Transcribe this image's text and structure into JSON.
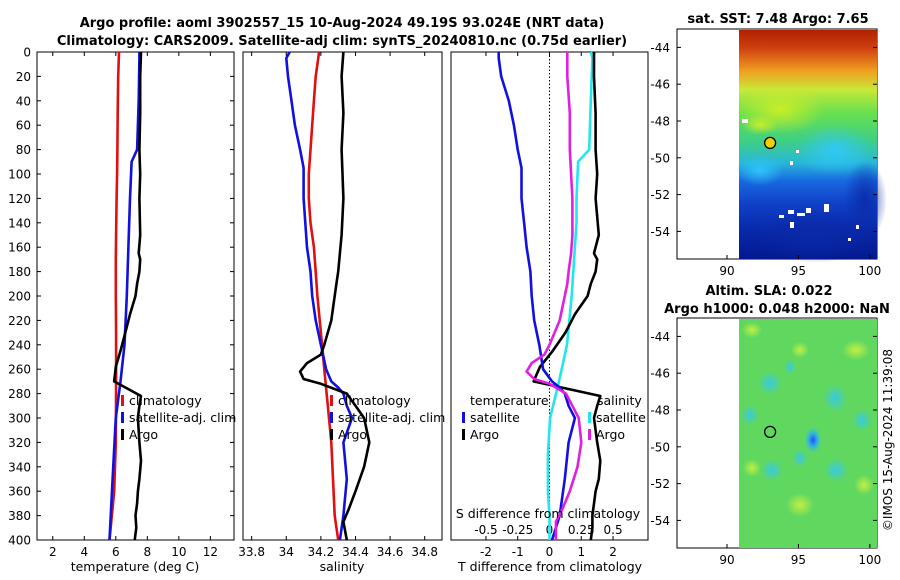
{
  "title": {
    "line1": "Argo profile: aoml 3902557_15 10-Aug-2024 49.19S 93.024E (NRT data)",
    "line2": "Climatology: CARS2009. Satellite-adj clim: synTS_20240810.nc (0.75d earlier)"
  },
  "watermark": "©IMOS 15-Aug-2024 11:39:08",
  "colors": {
    "climatology": "#e01010",
    "satellite": "#1010e0",
    "argo": "#000000",
    "temp_diff": "#22e6ee",
    "sal_diff": "#e020e0",
    "marker": "#f2d000"
  },
  "chart_data": [
    {
      "id": "temperature",
      "type": "line",
      "xlabel": "temperature (deg C)",
      "ylabel": "",
      "xlim": [
        1,
        13.5
      ],
      "ylim": [
        400,
        0
      ],
      "xticks": [
        "2",
        "4",
        "6",
        "8",
        "10",
        "12"
      ],
      "yticks": [
        "0",
        "20",
        "40",
        "60",
        "80",
        "100",
        "120",
        "140",
        "160",
        "180",
        "200",
        "220",
        "240",
        "260",
        "280",
        "300",
        "320",
        "340",
        "360",
        "380",
        "400"
      ],
      "legend": [
        "climatology",
        "satellite-adj. clim",
        "Argo"
      ],
      "series": [
        {
          "name": "climatology",
          "x": [
            6.2,
            6.15,
            6.12,
            6.1,
            6.08,
            6.05,
            6.02,
            6.0,
            6.0,
            6.02,
            6.02,
            6.01,
            6.0,
            5.9,
            5.6
          ],
          "y": [
            0,
            20,
            50,
            80,
            100,
            120,
            150,
            170,
            200,
            230,
            260,
            290,
            320,
            360,
            400
          ]
        },
        {
          "name": "satellite-adj. clim",
          "x": [
            7.5,
            7.5,
            7.45,
            7.35,
            7.0,
            6.9,
            6.85,
            6.8,
            6.75,
            6.7,
            6.55,
            6.3,
            6.0,
            5.8,
            5.6
          ],
          "y": [
            0,
            5,
            40,
            80,
            90,
            120,
            140,
            160,
            180,
            200,
            240,
            270,
            300,
            350,
            400
          ]
        },
        {
          "name": "Argo",
          "x": [
            7.6,
            7.55,
            7.55,
            7.5,
            7.55,
            7.5,
            7.55,
            7.45,
            7.55,
            7.5,
            7.35,
            7.25,
            6.9,
            6.6,
            6.3,
            6.0,
            5.9,
            7.6,
            7.5,
            7.4,
            7.5,
            7.6,
            7.5,
            7.4,
            7.35,
            7.25,
            7.3,
            7.2
          ],
          "y": [
            0,
            20,
            50,
            80,
            100,
            120,
            150,
            165,
            170,
            180,
            190,
            200,
            215,
            230,
            245,
            258,
            270,
            282,
            290,
            300,
            320,
            335,
            350,
            360,
            370,
            380,
            390,
            400
          ]
        }
      ]
    },
    {
      "id": "salinity",
      "type": "line",
      "xlabel": "salinity",
      "ylabel": "",
      "xlim": [
        33.75,
        34.9
      ],
      "ylim": [
        400,
        0
      ],
      "xticks": [
        "33.8",
        "34",
        "34.2",
        "34.4",
        "34.6",
        "34.8"
      ],
      "legend": [
        "climatology",
        "satellite-adj. clim",
        "Argo"
      ],
      "series": [
        {
          "name": "climatology",
          "x": [
            34.19,
            34.18,
            34.17,
            34.16,
            34.15,
            34.14,
            34.13,
            34.13,
            34.14,
            34.16,
            34.17,
            34.18,
            34.2,
            34.22,
            34.24,
            34.26,
            34.27,
            34.28,
            34.3
          ],
          "y": [
            0,
            10,
            20,
            40,
            60,
            80,
            100,
            120,
            140,
            160,
            180,
            200,
            230,
            260,
            290,
            320,
            350,
            380,
            400
          ]
        },
        {
          "name": "satellite-adj. clim",
          "x": [
            34.02,
            34.0,
            34.01,
            34.03,
            34.05,
            34.08,
            34.1,
            34.1,
            34.11,
            34.12,
            34.14,
            34.15,
            34.17,
            34.2,
            34.23,
            34.26,
            34.3,
            34.33,
            34.35,
            34.38,
            34.33,
            34.35,
            34.33,
            34.31
          ],
          "y": [
            0,
            5,
            20,
            40,
            60,
            80,
            95,
            120,
            140,
            160,
            180,
            200,
            220,
            240,
            260,
            270,
            275,
            280,
            290,
            300,
            320,
            350,
            380,
            400
          ]
        },
        {
          "name": "Argo",
          "x": [
            34.33,
            34.32,
            34.33,
            34.32,
            34.33,
            34.32,
            34.31,
            34.3,
            34.29,
            34.28,
            34.27,
            34.26,
            34.24,
            34.22,
            34.2,
            34.12,
            34.08,
            34.1,
            34.2,
            34.35,
            34.4,
            34.45,
            34.48,
            34.45,
            34.4,
            34.36,
            34.33,
            34.35
          ],
          "y": [
            0,
            20,
            50,
            80,
            120,
            150,
            165,
            180,
            190,
            200,
            210,
            220,
            230,
            240,
            248,
            255,
            262,
            268,
            272,
            280,
            290,
            300,
            320,
            340,
            360,
            375,
            385,
            400
          ]
        }
      ]
    },
    {
      "id": "differences",
      "type": "line",
      "xlabel": "T difference from climatology",
      "xlabel_top": "S difference from climatology",
      "xlim": [
        -3.1,
        3.1
      ],
      "ylim": [
        400,
        0
      ],
      "xticks": [
        "-2",
        "-1",
        "0",
        "1",
        "2"
      ],
      "xticks_top": [
        "-0.5",
        "-0.25",
        "0",
        "0.25",
        "0.5"
      ],
      "legend_left_title": "temperature",
      "legend_left": [
        "satellite",
        "Argo"
      ],
      "legend_right_title": "salinity",
      "legend_right": [
        "satellite",
        "Argo"
      ],
      "series": [
        {
          "name": "temperature satellite",
          "x": [
            1.3,
            1.35,
            1.3,
            1.25,
            0.9,
            0.85,
            0.85,
            0.8,
            0.75,
            0.7,
            0.55,
            0.3,
            0.02,
            -0.05,
            -0.05,
            0,
            0
          ],
          "y": [
            0,
            5,
            40,
            80,
            90,
            120,
            140,
            160,
            180,
            200,
            240,
            270,
            300,
            330,
            360,
            380,
            400
          ]
        },
        {
          "name": "temperature Argo",
          "x": [
            1.4,
            1.4,
            1.45,
            1.45,
            1.5,
            1.45,
            1.55,
            1.4,
            1.5,
            1.45,
            1.3,
            1.2,
            0.8,
            0.5,
            0.1,
            -0.3,
            -0.5,
            1.6,
            1.5,
            1.4,
            1.5,
            1.6,
            1.55,
            1.45,
            1.4,
            1.35,
            1.35,
            1.3
          ],
          "y": [
            0,
            20,
            50,
            80,
            100,
            120,
            150,
            165,
            170,
            180,
            190,
            200,
            215,
            230,
            245,
            258,
            270,
            282,
            290,
            300,
            320,
            335,
            350,
            360,
            370,
            380,
            390,
            400
          ]
        },
        {
          "name": "salinity satellite",
          "x": [
            -0.4,
            -0.4,
            -0.38,
            -0.32,
            -0.28,
            -0.25,
            -0.22,
            -0.22,
            -0.2,
            -0.18,
            -0.15,
            -0.14,
            -0.12,
            -0.08,
            -0.05,
            0.02,
            0.08,
            0.12,
            0.15,
            0.2,
            0.15,
            0.12,
            0.08,
            0.02
          ],
          "y": [
            0,
            5,
            20,
            40,
            60,
            80,
            95,
            120,
            140,
            160,
            180,
            200,
            220,
            240,
            260,
            270,
            275,
            280,
            290,
            300,
            320,
            350,
            380,
            400
          ]
        },
        {
          "name": "salinity Argo",
          "x": [
            0.14,
            0.14,
            0.16,
            0.16,
            0.18,
            0.18,
            0.17,
            0.15,
            0.14,
            0.12,
            0.1,
            0.08,
            0.04,
            0.0,
            -0.04,
            -0.14,
            -0.18,
            -0.12,
            0.0,
            0.13,
            0.18,
            0.23,
            0.25,
            0.22,
            0.16,
            0.1,
            0.05,
            0.05
          ],
          "y": [
            0,
            20,
            50,
            80,
            120,
            150,
            165,
            180,
            190,
            200,
            210,
            220,
            230,
            240,
            248,
            255,
            262,
            268,
            272,
            280,
            290,
            300,
            320,
            340,
            360,
            375,
            385,
            400
          ]
        }
      ]
    },
    {
      "id": "sst_map",
      "type": "heatmap",
      "title": "sat. SST: 7.48 Argo: 7.65",
      "xticks": [
        "90",
        "95",
        "100"
      ],
      "yticks": [
        "-44",
        "-46",
        "-48",
        "-50",
        "-52",
        "-54"
      ],
      "xlim": [
        86.5,
        100.5
      ],
      "ylim": [
        -55.5,
        -43
      ],
      "marker": {
        "lon": 93.02,
        "lat": -49.19
      },
      "data_lon_range": [
        90,
        100.5
      ]
    },
    {
      "id": "sla_map",
      "type": "heatmap",
      "title": "Altim. SLA: 0.022",
      "subtitle": "Argo h1000: 0.048 h2000: NaN",
      "xticks": [
        "90",
        "95",
        "100"
      ],
      "yticks": [
        "-44",
        "-46",
        "-48",
        "-50",
        "-52",
        "-54"
      ],
      "xlim": [
        86.5,
        100.5
      ],
      "ylim": [
        -55.5,
        -43
      ],
      "marker": {
        "lon": 93.02,
        "lat": -49.19
      },
      "data_lon_range": [
        90,
        100.5
      ]
    }
  ]
}
